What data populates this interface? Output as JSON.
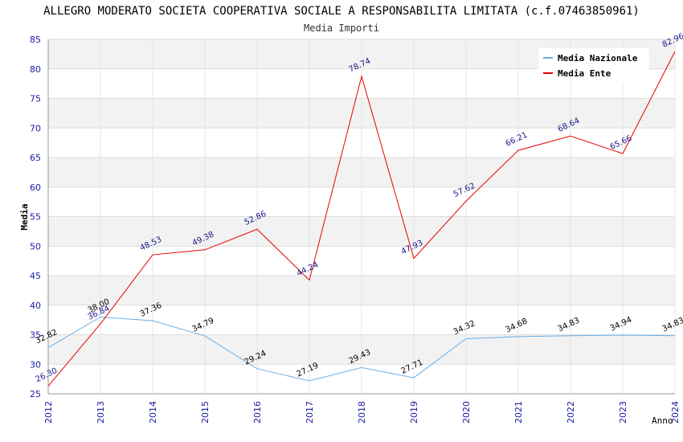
{
  "chart_data": {
    "type": "line",
    "title": "ALLEGRO MODERATO SOCIETA COOPERATIVA SOCIALE A RESPONSABILITA LIMITATA (c.f.07463850961)",
    "subtitle": "Media Importi",
    "xlabel": "Anno",
    "ylabel": "Media",
    "ylim": [
      25,
      85
    ],
    "y_ticks": [
      25,
      30,
      35,
      40,
      45,
      50,
      55,
      60,
      65,
      70,
      75,
      80,
      85
    ],
    "categories": [
      "2012",
      "2013",
      "2014",
      "2015",
      "2016",
      "2017",
      "2018",
      "2019",
      "2020",
      "2021",
      "2022",
      "2023",
      "2024"
    ],
    "legend_position": "top-right",
    "series": [
      {
        "name": "Media Nazionale",
        "color": "#6aaee6",
        "label_color": "#000000",
        "values": [
          32.82,
          38.0,
          37.36,
          34.79,
          29.24,
          27.19,
          29.43,
          27.71,
          34.32,
          34.68,
          34.83,
          34.94,
          34.83
        ],
        "labels": [
          "32.82",
          "38.00",
          "37.36",
          "34.79",
          "29.24",
          "27.19",
          "29.43",
          "27.71",
          "34.32",
          "34.68",
          "34.83",
          "34.94",
          "34.83"
        ]
      },
      {
        "name": "Media Ente",
        "color": "#e60000",
        "label_color": "#1a1a8c",
        "values": [
          26.3,
          36.84,
          48.53,
          49.38,
          52.86,
          44.24,
          78.74,
          47.93,
          57.62,
          66.21,
          68.64,
          65.66,
          82.96
        ],
        "labels": [
          "26.30",
          "36.84",
          "48.53",
          "49.38",
          "52.86",
          "44.24",
          "78.74",
          "47.93",
          "57.62",
          "66.21",
          "68.64",
          "65.66",
          "82.96"
        ]
      }
    ]
  }
}
